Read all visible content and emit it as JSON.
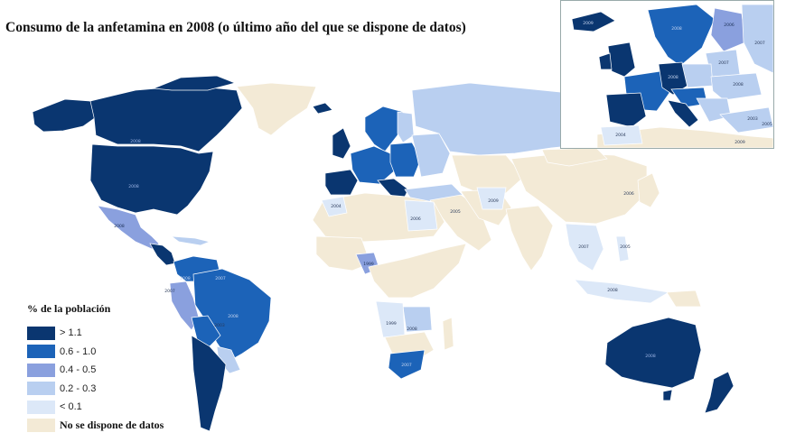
{
  "title": "Consumo de la anfetamina en 2008 (o último año del que se dispone de datos)",
  "legend": {
    "title": "% de la población",
    "items": [
      {
        "label": "> 1.1",
        "color": "#0a3670"
      },
      {
        "label": "0.6 - 1.0",
        "color": "#1c63b8"
      },
      {
        "label": "0.4 - 0.5",
        "color": "#8aa0de"
      },
      {
        "label": "0.2 - 0.3",
        "color": "#b9cff0"
      },
      {
        "label": "< 0.1",
        "color": "#dce8f8"
      },
      {
        "label": "No se dispone de datos",
        "color": "#f3ead6"
      }
    ]
  },
  "colors": {
    "ocean": "#ffffff",
    "border": "#ffffff"
  },
  "year_labels": [
    {
      "text": "2008",
      "class": "dark"
    },
    {
      "text": "2008",
      "class": "dark"
    },
    {
      "text": "2008",
      "class": "mid"
    },
    {
      "text": "2004",
      "class": "light"
    },
    {
      "text": "2006",
      "class": "light"
    },
    {
      "text": "2005",
      "class": "light"
    },
    {
      "text": "2009",
      "class": "light"
    },
    {
      "text": "2006",
      "class": "light"
    },
    {
      "text": "2007",
      "class": "light"
    },
    {
      "text": "2005",
      "class": "light"
    },
    {
      "text": "2008",
      "class": "light"
    },
    {
      "text": "1999",
      "class": "mid"
    },
    {
      "text": "1999",
      "class": "light"
    },
    {
      "text": "2008",
      "class": "light"
    },
    {
      "text": "2007",
      "class": "dark"
    },
    {
      "text": "2008",
      "class": "dark"
    },
    {
      "text": "2007",
      "class": "light"
    },
    {
      "text": "2008",
      "class": "dark"
    },
    {
      "text": "2007",
      "class": "dark"
    },
    {
      "text": "2003",
      "class": "light"
    },
    {
      "text": "2008",
      "class": "dark"
    }
  ],
  "inset_labels": [
    {
      "text": "2009"
    },
    {
      "text": "2008"
    },
    {
      "text": "2007"
    },
    {
      "text": "2006"
    },
    {
      "text": "2007"
    },
    {
      "text": "2008"
    },
    {
      "text": "2003"
    },
    {
      "text": "2004"
    },
    {
      "text": "2005"
    },
    {
      "text": "2009"
    },
    {
      "text": "2008"
    }
  ]
}
